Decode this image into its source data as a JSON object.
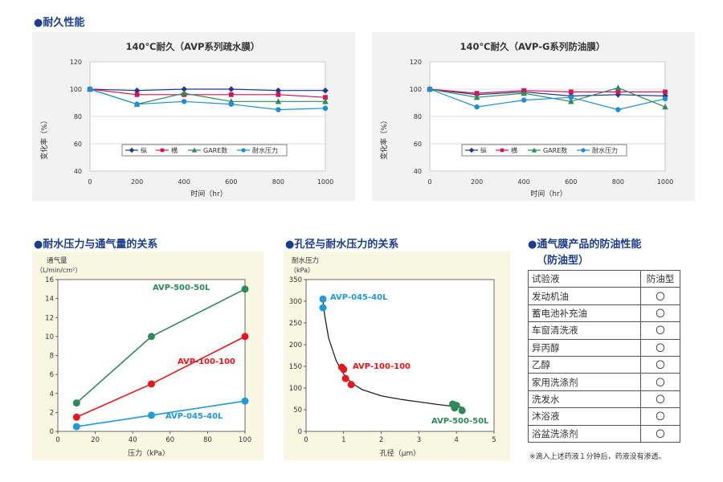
{
  "sections": {
    "durability": "●耐久性能",
    "water_vs_air": "●耐水压力与通气量的关系",
    "pore_vs_water": "●孔径与耐水压力的关系",
    "oil_title_1": "●通气膜产品的防油性能",
    "oil_title_2": "（防油型）"
  },
  "chart_data": [
    {
      "type": "line",
      "title": "140℃耐久（AVP系列疏水膜）",
      "xlabel": "时间（hr）",
      "ylabel": "变化率（%）",
      "x": [
        0,
        200,
        400,
        600,
        800,
        1000
      ],
      "xlim": [
        0,
        1000
      ],
      "ylim": [
        40,
        120
      ],
      "yticks": [
        40,
        60,
        80,
        100,
        120
      ],
      "legend_position": "bottom-center",
      "series": [
        {
          "name": "纵",
          "color": "#1f3a8f",
          "marker": "diamond",
          "values": [
            100,
            99,
            100,
            100,
            99,
            99
          ]
        },
        {
          "name": "横",
          "color": "#d4145a",
          "marker": "square",
          "values": [
            100,
            96,
            96,
            96,
            96,
            94
          ]
        },
        {
          "name": "GARE数",
          "color": "#2e8b57",
          "marker": "triangle",
          "values": [
            100,
            89,
            97,
            91,
            91,
            91
          ]
        },
        {
          "name": "耐水压力",
          "color": "#1e8fd6",
          "marker": "circle",
          "values": [
            100,
            89,
            91,
            89,
            85,
            86
          ]
        }
      ]
    },
    {
      "type": "line",
      "title": "140℃耐久（AVP-G系列防油膜）",
      "xlabel": "时间（hr）",
      "ylabel": "变化率（%）",
      "x": [
        0,
        200,
        400,
        600,
        800,
        1000
      ],
      "xlim": [
        0,
        1000
      ],
      "ylim": [
        40,
        120
      ],
      "yticks": [
        40,
        60,
        80,
        100,
        120
      ],
      "legend_position": "bottom-center",
      "series": [
        {
          "name": "纵",
          "color": "#1f3a8f",
          "marker": "diamond",
          "values": [
            100,
            96,
            98,
            95,
            96,
            95
          ]
        },
        {
          "name": "横",
          "color": "#d4145a",
          "marker": "square",
          "values": [
            100,
            97,
            99,
            98,
            98,
            98
          ]
        },
        {
          "name": "GARE数",
          "color": "#2e8b57",
          "marker": "triangle",
          "values": [
            100,
            94,
            97,
            91,
            101,
            87
          ]
        },
        {
          "name": "耐水压力",
          "color": "#1e8fd6",
          "marker": "circle",
          "values": [
            100,
            87,
            92,
            94,
            85,
            93
          ]
        }
      ]
    },
    {
      "type": "line",
      "xlabel": "压力（kPa）",
      "ylabel_1": "通气量",
      "ylabel_2": "（L/min/cm²）",
      "xlim": [
        0,
        100
      ],
      "xticks": [
        0,
        20,
        40,
        60,
        80,
        100
      ],
      "ylim": [
        0,
        16
      ],
      "yticks": [
        0,
        2,
        4,
        6,
        8,
        10,
        12,
        14,
        16
      ],
      "x": [
        10,
        50,
        100
      ],
      "series": [
        {
          "name": "AVP-500-50L",
          "color": "#2e8b57",
          "values": [
            3.0,
            10.0,
            15.0
          ]
        },
        {
          "name": "AVP-100-100",
          "color": "#e8161b",
          "values": [
            1.5,
            5.0,
            10.0
          ]
        },
        {
          "name": "AVP-045-40L",
          "color": "#1e9ad6",
          "values": [
            0.5,
            1.7,
            3.2
          ]
        }
      ]
    },
    {
      "type": "scatter",
      "xlabel": "孔径（μm）",
      "ylabel_1": "耐水压力",
      "ylabel_2": "（kPa）",
      "xlim": [
        0,
        5
      ],
      "xticks": [
        0,
        1,
        2,
        3,
        4,
        5
      ],
      "ylim": [
        0,
        350
      ],
      "yticks": [
        0,
        50,
        100,
        150,
        200,
        250,
        300,
        350
      ],
      "fit_curve": {
        "x": [
          0.45,
          0.5,
          0.6,
          0.8,
          1.0,
          1.2,
          1.5,
          2.0,
          2.5,
          3.0,
          3.5,
          4.0,
          4.2
        ],
        "y": [
          300,
          265,
          215,
          163,
          132,
          112,
          96,
          82,
          74,
          68,
          62,
          57,
          55
        ]
      },
      "series": [
        {
          "name": "AVP-045-40L",
          "color": "#1e9ad6",
          "points": [
            [
              0.45,
              305
            ],
            [
              0.45,
              285
            ]
          ]
        },
        {
          "name": "AVP-100-100",
          "color": "#e8161b",
          "points": [
            [
              0.95,
              148
            ],
            [
              1.0,
              143
            ],
            [
              1.05,
              122
            ],
            [
              1.2,
              108
            ]
          ]
        },
        {
          "name": "AVP-500-50L",
          "color": "#2e8b57",
          "points": [
            [
              3.9,
              63
            ],
            [
              4.0,
              60
            ],
            [
              3.95,
              54
            ],
            [
              4.15,
              48
            ]
          ]
        }
      ]
    }
  ],
  "oil_table": {
    "headers": [
      "试验液",
      "防油型"
    ],
    "rows": [
      [
        "发动机油",
        "〇"
      ],
      [
        "蓄电池补充油",
        "〇"
      ],
      [
        "车窗清洗液",
        "〇"
      ],
      [
        "异丙醇",
        "〇"
      ],
      [
        "乙醇",
        "〇"
      ],
      [
        "家用洗涤剂",
        "〇"
      ],
      [
        "洗发水",
        "〇"
      ],
      [
        "沐浴液",
        "〇"
      ],
      [
        "浴盆洗涤剂",
        "〇"
      ]
    ],
    "note": "※滴入上述药液１分钟后，药液没有渗透。"
  }
}
